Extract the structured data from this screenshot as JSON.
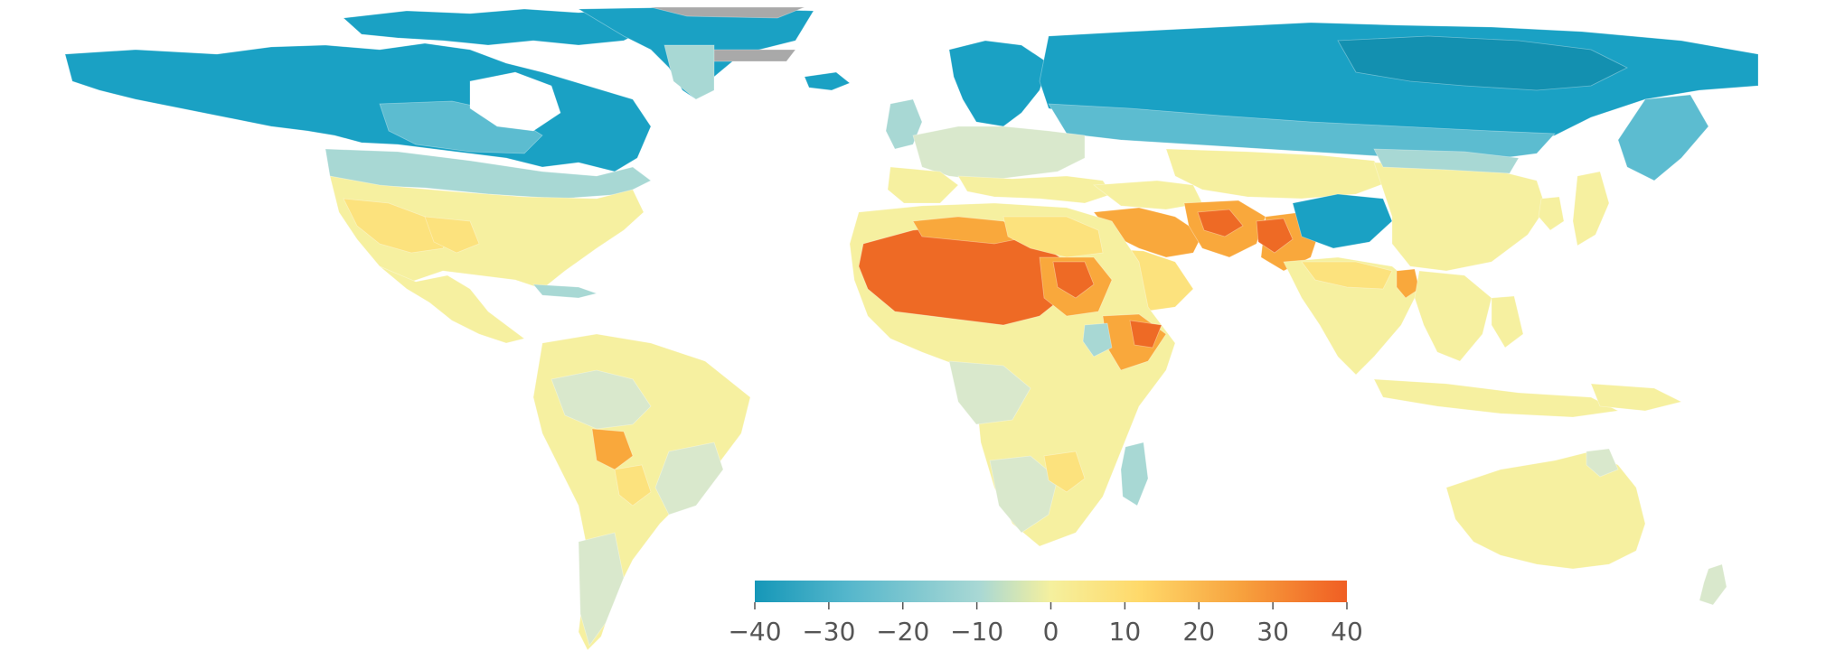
{
  "legend": {
    "ticks": [
      "−40",
      "−30",
      "−20",
      "−10",
      "0",
      "10",
      "20",
      "30",
      "40"
    ],
    "range": [
      -40,
      40
    ],
    "colors": [
      "#1597b8",
      "#56b7cc",
      "#a9d8d4",
      "#f5f09e",
      "#ffd96a",
      "#f7a23e",
      "#f05e23"
    ]
  },
  "palette": {
    "ocean": "#ffffff",
    "cold_extreme": "#1390b0",
    "cold": "#1aa1c4",
    "cool": "#5cbcd0",
    "mild_cool": "#a8d8d4",
    "neutral": "#d9e8cc",
    "mild_warm": "#f6f0a0",
    "warm": "#fce27d",
    "hot": "#f9a83c",
    "extreme": "#ee6a25",
    "no_data": "#a9a9a9"
  }
}
